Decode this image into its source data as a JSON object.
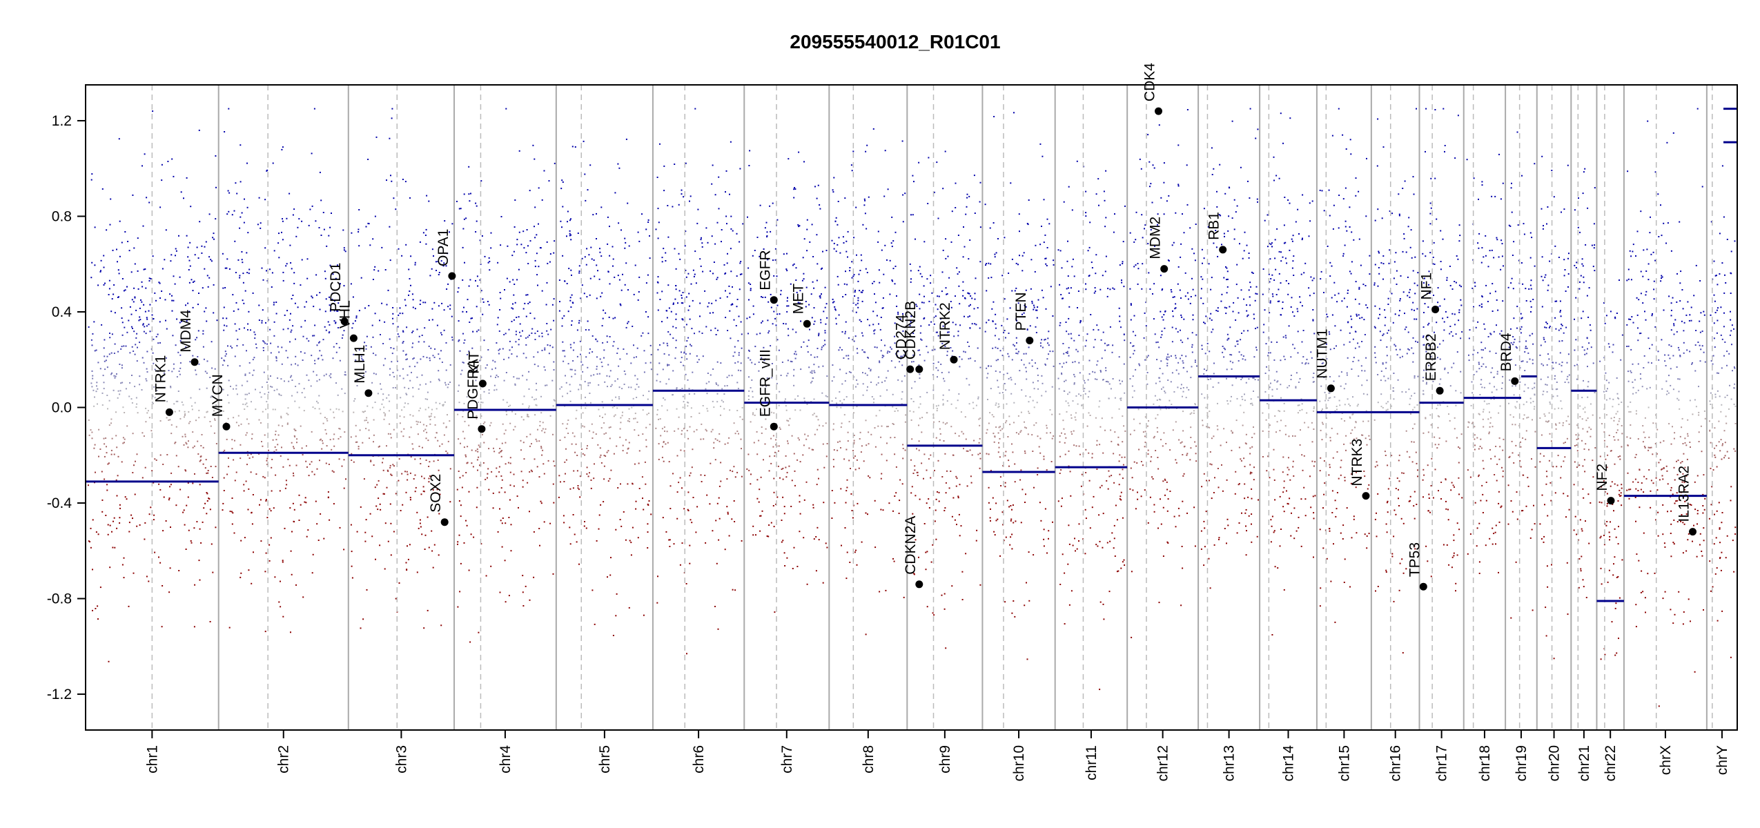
{
  "chart_data": {
    "type": "scatter",
    "title": "209555540012_R01C01",
    "xlabel": "",
    "ylabel": "",
    "ylim": [
      -1.35,
      1.35
    ],
    "clip": [
      -1.25,
      1.25
    ],
    "y_ticks": [
      1.2,
      0.8,
      0.4,
      0.0,
      -0.4,
      -0.8,
      -1.2
    ],
    "y_tick_labels": [
      "1.2",
      "0.8",
      "0.4",
      "0.0",
      "-0.4",
      "-0.8",
      "-1.2"
    ],
    "grid": false,
    "colors": {
      "gain": "#0000aa",
      "loss": "#8b0000",
      "neutral": "#bbbbbb",
      "segment": "#00008b",
      "gene_marker": "#000000",
      "chr_border": "#aaaaaa",
      "centromere": "#bbbbbb"
    },
    "chromosomes": [
      {
        "label": "chr1",
        "size": 249,
        "centromere": 0.5,
        "segments": [
          {
            "from": 0,
            "to": 1,
            "value": -0.31
          }
        ],
        "tendency": 0.1
      },
      {
        "label": "chr2",
        "size": 243,
        "centromere": 0.38,
        "segments": [
          {
            "from": 0,
            "to": 1,
            "value": -0.19
          }
        ],
        "tendency": 0.12
      },
      {
        "label": "chr3",
        "size": 198,
        "centromere": 0.46,
        "segments": [
          {
            "from": 0,
            "to": 1,
            "value": -0.2
          }
        ],
        "tendency": 0.1
      },
      {
        "label": "chr4",
        "size": 191,
        "centromere": 0.26,
        "segments": [
          {
            "from": 0,
            "to": 1,
            "value": -0.01
          }
        ],
        "tendency": 0.12
      },
      {
        "label": "chr5",
        "size": 181,
        "centromere": 0.26,
        "segments": [
          {
            "from": 0,
            "to": 1,
            "value": 0.01
          }
        ],
        "tendency": 0.14
      },
      {
        "label": "chr6",
        "size": 171,
        "centromere": 0.35,
        "segments": [
          {
            "from": 0,
            "to": 1,
            "value": 0.07
          }
        ],
        "tendency": 0.18
      },
      {
        "label": "chr7",
        "size": 159,
        "centromere": 0.38,
        "segments": [
          {
            "from": 0,
            "to": 1,
            "value": 0.02
          }
        ],
        "tendency": 0.18
      },
      {
        "label": "chr8",
        "size": 146,
        "centromere": 0.31,
        "segments": [
          {
            "from": 0,
            "to": 1,
            "value": 0.01
          }
        ],
        "tendency": 0.18
      },
      {
        "label": "chr9",
        "size": 141,
        "centromere": 0.35,
        "segments": [
          {
            "from": 0,
            "to": 1,
            "value": -0.16
          }
        ],
        "tendency": 0.1
      },
      {
        "label": "chr10",
        "size": 136,
        "centromere": 0.29,
        "segments": [
          {
            "from": 0,
            "to": 1,
            "value": -0.27
          }
        ],
        "tendency": 0.1
      },
      {
        "label": "chr11",
        "size": 135,
        "centromere": 0.39,
        "segments": [
          {
            "from": 0,
            "to": 1,
            "value": -0.25
          }
        ],
        "tendency": 0.1
      },
      {
        "label": "chr12",
        "size": 133,
        "centromere": 0.27,
        "segments": [
          {
            "from": 0,
            "to": 1,
            "value": 0.0
          }
        ],
        "tendency": 0.18
      },
      {
        "label": "chr13",
        "size": 115,
        "centromere": 0.15,
        "segments": [
          {
            "from": 0,
            "to": 1,
            "value": 0.13
          }
        ],
        "tendency": 0.2
      },
      {
        "label": "chr14",
        "size": 107,
        "centromere": 0.16,
        "segments": [
          {
            "from": 0,
            "to": 1,
            "value": 0.03
          }
        ],
        "tendency": 0.18
      },
      {
        "label": "chr15",
        "size": 102,
        "centromere": 0.17,
        "segments": [
          {
            "from": 0,
            "to": 1,
            "value": -0.02
          }
        ],
        "tendency": 0.14
      },
      {
        "label": "chr16",
        "size": 90,
        "centromere": 0.4,
        "segments": [
          {
            "from": 0,
            "to": 1,
            "value": -0.02
          }
        ],
        "tendency": 0.14
      },
      {
        "label": "chr17",
        "size": 83,
        "centromere": 0.29,
        "segments": [
          {
            "from": 0,
            "to": 1,
            "value": 0.02
          }
        ],
        "tendency": 0.16
      },
      {
        "label": "chr18",
        "size": 78,
        "centromere": 0.23,
        "segments": [
          {
            "from": 0,
            "to": 1,
            "value": 0.04
          }
        ],
        "tendency": 0.16
      },
      {
        "label": "chr19",
        "size": 59,
        "centromere": 0.45,
        "segments": [
          {
            "from": 0,
            "to": 0.5,
            "value": 0.04
          },
          {
            "from": 0.5,
            "to": 1,
            "value": 0.13
          }
        ],
        "tendency": 0.2
      },
      {
        "label": "chr20",
        "size": 64,
        "centromere": 0.44,
        "segments": [
          {
            "from": 0,
            "to": 1,
            "value": -0.17
          }
        ],
        "tendency": 0.12
      },
      {
        "label": "chr21",
        "size": 48,
        "centromere": 0.27,
        "segments": [
          {
            "from": 0,
            "to": 1,
            "value": 0.07
          }
        ],
        "tendency": 0.16
      },
      {
        "label": "chr22",
        "size": 51,
        "centromere": 0.29,
        "segments": [
          {
            "from": 0,
            "to": 1,
            "value": -0.81
          }
        ],
        "tendency": -0.3
      },
      {
        "label": "chrX",
        "size": 155,
        "centromere": 0.39,
        "segments": [
          {
            "from": 0,
            "to": 1,
            "value": -0.37
          }
        ],
        "tendency": 0.0
      },
      {
        "label": "chrY",
        "size": 57,
        "centromere": 0.18,
        "segments": [
          {
            "from": 0,
            "to": 1,
            "value": 1.25
          },
          {
            "from": 0,
            "to": 1,
            "value": 1.11
          }
        ],
        "tendency": 0.0
      }
    ],
    "genes": [
      {
        "name": "NTRK1",
        "chr": 0,
        "pos": 0.63,
        "value": -0.02
      },
      {
        "name": "MDM4",
        "chr": 0,
        "pos": 0.82,
        "value": 0.19
      },
      {
        "name": "MYCN",
        "chr": 1,
        "pos": 0.06,
        "value": -0.08
      },
      {
        "name": "VHL",
        "chr": 2,
        "pos": 0.05,
        "value": 0.29
      },
      {
        "name": "PDCD1",
        "chr": 1,
        "pos": 0.97,
        "value": 0.36
      },
      {
        "name": "MLH1",
        "chr": 2,
        "pos": 0.19,
        "value": 0.06
      },
      {
        "name": "SOX2",
        "chr": 2,
        "pos": 0.91,
        "value": -0.48
      },
      {
        "name": "OPA1",
        "chr": 2,
        "pos": 0.98,
        "value": 0.55
      },
      {
        "name": "KIT",
        "chr": 3,
        "pos": 0.28,
        "value": 0.1
      },
      {
        "name": "PDGFRA",
        "chr": 3,
        "pos": 0.27,
        "value": -0.09
      },
      {
        "name": "EGFR",
        "chr": 6,
        "pos": 0.35,
        "value": 0.45
      },
      {
        "name": "EGFR_vIII",
        "chr": 6,
        "pos": 0.35,
        "value": -0.08
      },
      {
        "name": "MET",
        "chr": 6,
        "pos": 0.74,
        "value": 0.35
      },
      {
        "name": "CD274",
        "chr": 8,
        "pos": 0.04,
        "value": 0.16
      },
      {
        "name": "CDKN2B",
        "chr": 8,
        "pos": 0.16,
        "value": 0.16
      },
      {
        "name": "CDKN2A",
        "chr": 8,
        "pos": 0.16,
        "value": -0.74
      },
      {
        "name": "NTRK2",
        "chr": 8,
        "pos": 0.62,
        "value": 0.2
      },
      {
        "name": "PTEN",
        "chr": 9,
        "pos": 0.65,
        "value": 0.28
      },
      {
        "name": "CDK4",
        "chr": 11,
        "pos": 0.44,
        "value": 1.24
      },
      {
        "name": "MDM2",
        "chr": 11,
        "pos": 0.52,
        "value": 0.58
      },
      {
        "name": "RB1",
        "chr": 12,
        "pos": 0.4,
        "value": 0.66
      },
      {
        "name": "NUTM1",
        "chr": 14,
        "pos": 0.26,
        "value": 0.08
      },
      {
        "name": "NTRK3",
        "chr": 14,
        "pos": 0.9,
        "value": -0.37
      },
      {
        "name": "TP53",
        "chr": 16,
        "pos": 0.09,
        "value": -0.75
      },
      {
        "name": "ERBB2",
        "chr": 16,
        "pos": 0.46,
        "value": 0.07
      },
      {
        "name": "NF1",
        "chr": 16,
        "pos": 0.36,
        "value": 0.41
      },
      {
        "name": "BRD4",
        "chr": 18,
        "pos": 0.3,
        "value": 0.11
      },
      {
        "name": "NF2",
        "chr": 21,
        "pos": 0.52,
        "value": -0.39
      },
      {
        "name": "IL13RA2",
        "chr": 22,
        "pos": 0.83,
        "value": -0.52
      }
    ]
  }
}
